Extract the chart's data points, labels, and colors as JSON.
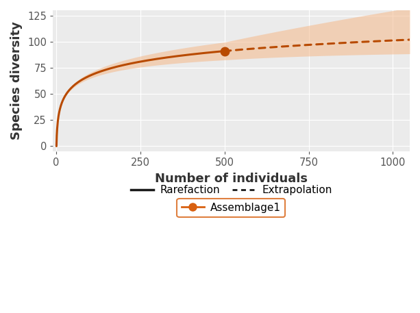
{
  "xlabel": "Number of individuals",
  "ylabel": "Species diversity",
  "xlim": [
    -10,
    1050
  ],
  "ylim": [
    -5,
    130
  ],
  "xticks": [
    0,
    250,
    500,
    750,
    1000
  ],
  "yticks": [
    0,
    25,
    50,
    75,
    100,
    125
  ],
  "obs_x": 500,
  "obs_y": 91,
  "line_color": "#B84A00",
  "ci_color": "#F5B88A",
  "ci_alpha": 0.55,
  "background_color": "#EBEBEB",
  "grid_color": "#FFFFFF",
  "legend_label_rarefaction": "Rarefaction",
  "legend_label_extrapolation": "Extrapolation",
  "legend_label_assemblage": "Assemblage1",
  "assemblage_box_color": "#D86010",
  "legend_line_color": "#1A1A1A",
  "xlabel_fontsize": 13,
  "ylabel_fontsize": 13,
  "tick_fontsize": 10.5
}
